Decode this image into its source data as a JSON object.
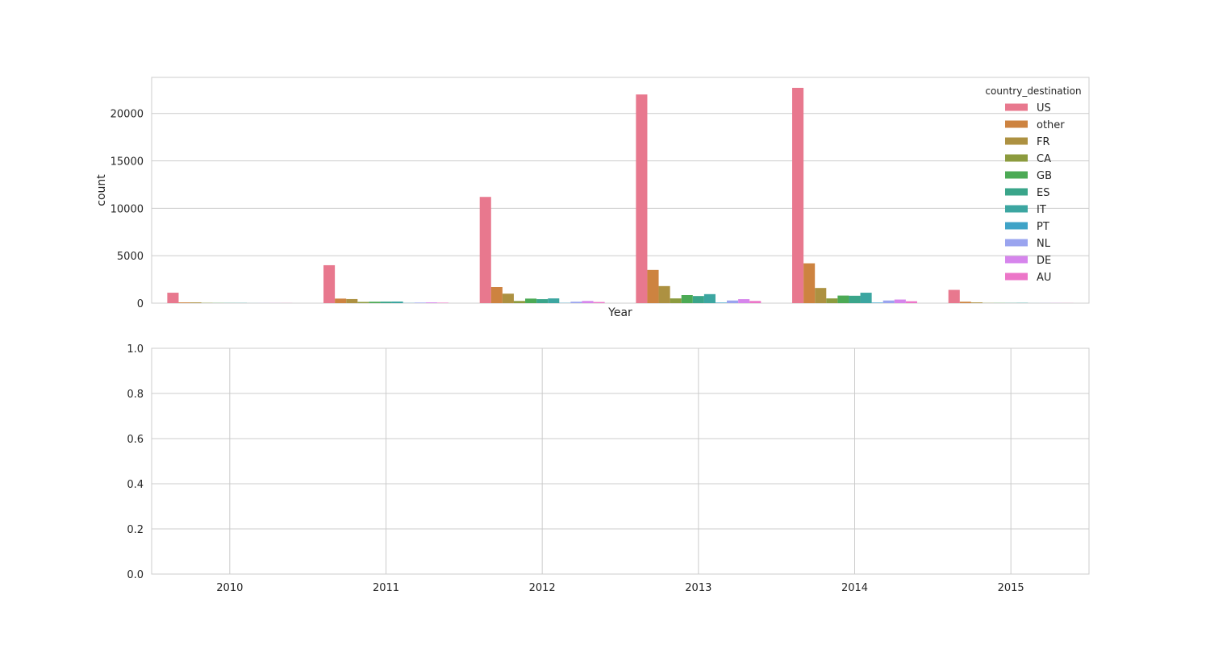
{
  "chart_data": [
    {
      "type": "bar",
      "categories": [
        "2010",
        "2011",
        "2012",
        "2013",
        "2014",
        "2015"
      ],
      "xlabel": "Year",
      "ylabel": "count",
      "ylim": [
        0,
        23800
      ],
      "yticks": [
        0,
        5000,
        10000,
        15000,
        20000
      ],
      "grid": true,
      "legend": {
        "title": "country_destination",
        "placement": "top-right"
      },
      "series": [
        {
          "name": "US",
          "color": "#e8788e",
          "values": [
            1100,
            4000,
            11200,
            22000,
            22700,
            1400
          ]
        },
        {
          "name": "other",
          "color": "#cd8340",
          "values": [
            80,
            480,
            1700,
            3500,
            4200,
            150
          ]
        },
        {
          "name": "FR",
          "color": "#ad9141",
          "values": [
            80,
            430,
            1000,
            1800,
            1600,
            80
          ]
        },
        {
          "name": "CA",
          "color": "#8c9b3e",
          "values": [
            30,
            130,
            230,
            500,
            500,
            20
          ]
        },
        {
          "name": "GB",
          "color": "#4caa55",
          "values": [
            20,
            150,
            480,
            850,
            800,
            20
          ]
        },
        {
          "name": "ES",
          "color": "#3aa58a",
          "values": [
            20,
            160,
            420,
            750,
            780,
            20
          ]
        },
        {
          "name": "IT",
          "color": "#3ca6a1",
          "values": [
            20,
            170,
            500,
            950,
            1100,
            30
          ]
        },
        {
          "name": "PT",
          "color": "#3fa3c7",
          "values": [
            5,
            20,
            30,
            60,
            60,
            5
          ]
        },
        {
          "name": "NL",
          "color": "#9aa4ef",
          "values": [
            10,
            60,
            150,
            280,
            280,
            10
          ]
        },
        {
          "name": "DE",
          "color": "#d685ec",
          "values": [
            10,
            80,
            230,
            420,
            380,
            15
          ]
        },
        {
          "name": "AU",
          "color": "#ec76c8",
          "values": [
            10,
            50,
            120,
            230,
            200,
            10
          ]
        }
      ]
    },
    {
      "type": "bar",
      "categories": [
        "2010",
        "2011",
        "2012",
        "2013",
        "2014",
        "2015"
      ],
      "ylim": [
        0,
        1
      ],
      "yticks": [
        "0.0",
        "0.2",
        "0.4",
        "0.6",
        "0.8",
        "1.0"
      ],
      "grid": true,
      "series": []
    }
  ]
}
